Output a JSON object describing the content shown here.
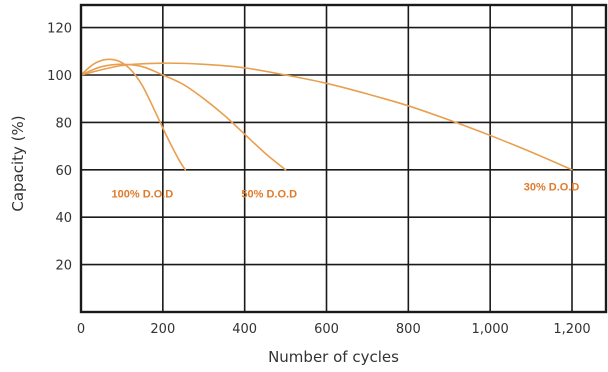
{
  "chart_data": {
    "type": "line",
    "title": "",
    "xlabel": "Number of cycles",
    "ylabel": "Capacity (%)",
    "xlim": [
      0,
      1250
    ],
    "ylim": [
      0,
      130
    ],
    "x_ticks": [
      0,
      200,
      400,
      600,
      800,
      1000,
      1200
    ],
    "x_tick_labels": [
      "0",
      "200",
      "400",
      "600",
      "800",
      "1,000",
      "1,200"
    ],
    "y_ticks": [
      20,
      40,
      60,
      80,
      100,
      120
    ],
    "y_tick_labels": [
      "20",
      "40",
      "60",
      "80",
      "100",
      "120"
    ],
    "grid": true,
    "line_color": "#e8a050",
    "label_color": "#e07a2a",
    "series": [
      {
        "name": "100% D.O.D",
        "x": [
          0,
          30,
          60,
          90,
          120,
          150,
          180,
          210,
          240,
          255
        ],
        "y": [
          100,
          104.5,
          106.5,
          106,
          102.5,
          95.5,
          85,
          74,
          64,
          60
        ],
        "label_at": [
          150,
          50
        ]
      },
      {
        "name": "50% D.O.D",
        "x": [
          0,
          50,
          100,
          150,
          200,
          250,
          300,
          350,
          400,
          450,
          500
        ],
        "y": [
          100,
          103.5,
          104.5,
          103.5,
          100,
          96,
          90,
          83,
          75,
          67,
          60
        ],
        "label_at": [
          460,
          50
        ]
      },
      {
        "name": "30% D.O.D",
        "x": [
          0,
          100,
          200,
          300,
          400,
          500,
          600,
          700,
          800,
          900,
          1000,
          1100,
          1200
        ],
        "y": [
          100,
          104,
          105,
          104.5,
          103,
          100,
          96.5,
          92,
          87,
          81,
          74.5,
          67.5,
          60
        ],
        "label_at": [
          1150,
          53
        ]
      }
    ]
  }
}
